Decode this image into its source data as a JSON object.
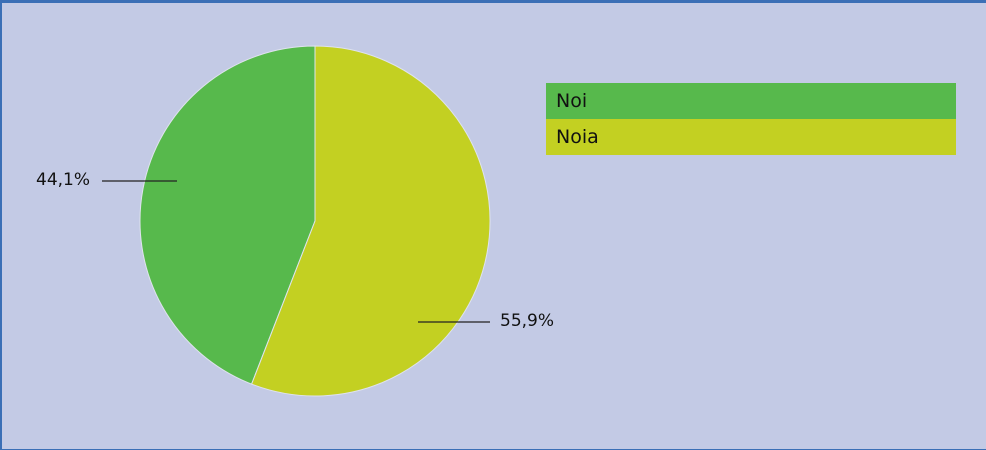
{
  "chart_data": {
    "type": "pie",
    "categories": [
      "Noi",
      "Noia"
    ],
    "values": [
      44.1,
      55.9
    ],
    "data_labels": [
      "44,1%",
      "55,9%"
    ],
    "colors": [
      "#57b94c",
      "#c3d022"
    ],
    "title": "",
    "legend_position": "top-right"
  }
}
